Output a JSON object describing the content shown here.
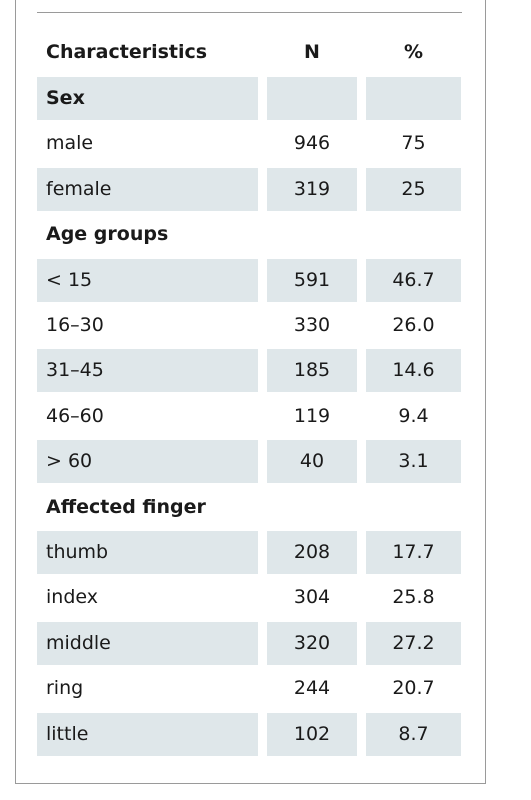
{
  "table": {
    "header": [
      "Characteristics",
      "N",
      "%"
    ],
    "rows": [
      [
        "Sex"
      ],
      [
        "male",
        "946",
        "75"
      ],
      [
        "female",
        "319",
        "25"
      ],
      [
        "Age groups"
      ],
      [
        "< 15",
        "591",
        "46.7"
      ],
      [
        "16–30",
        "330",
        "26.0"
      ],
      [
        "31–45",
        "185",
        "14.6"
      ],
      [
        "46–60",
        "119",
        "9.4"
      ],
      [
        "> 60",
        "40",
        "3.1"
      ],
      [
        "Affected finger"
      ],
      [
        "thumb",
        "208",
        "17.7"
      ],
      [
        "index",
        "304",
        "25.8"
      ],
      [
        "middle",
        "320",
        "27.2"
      ],
      [
        "ring",
        "244",
        "20.7"
      ],
      [
        "little",
        "102",
        "8.7"
      ]
    ]
  }
}
